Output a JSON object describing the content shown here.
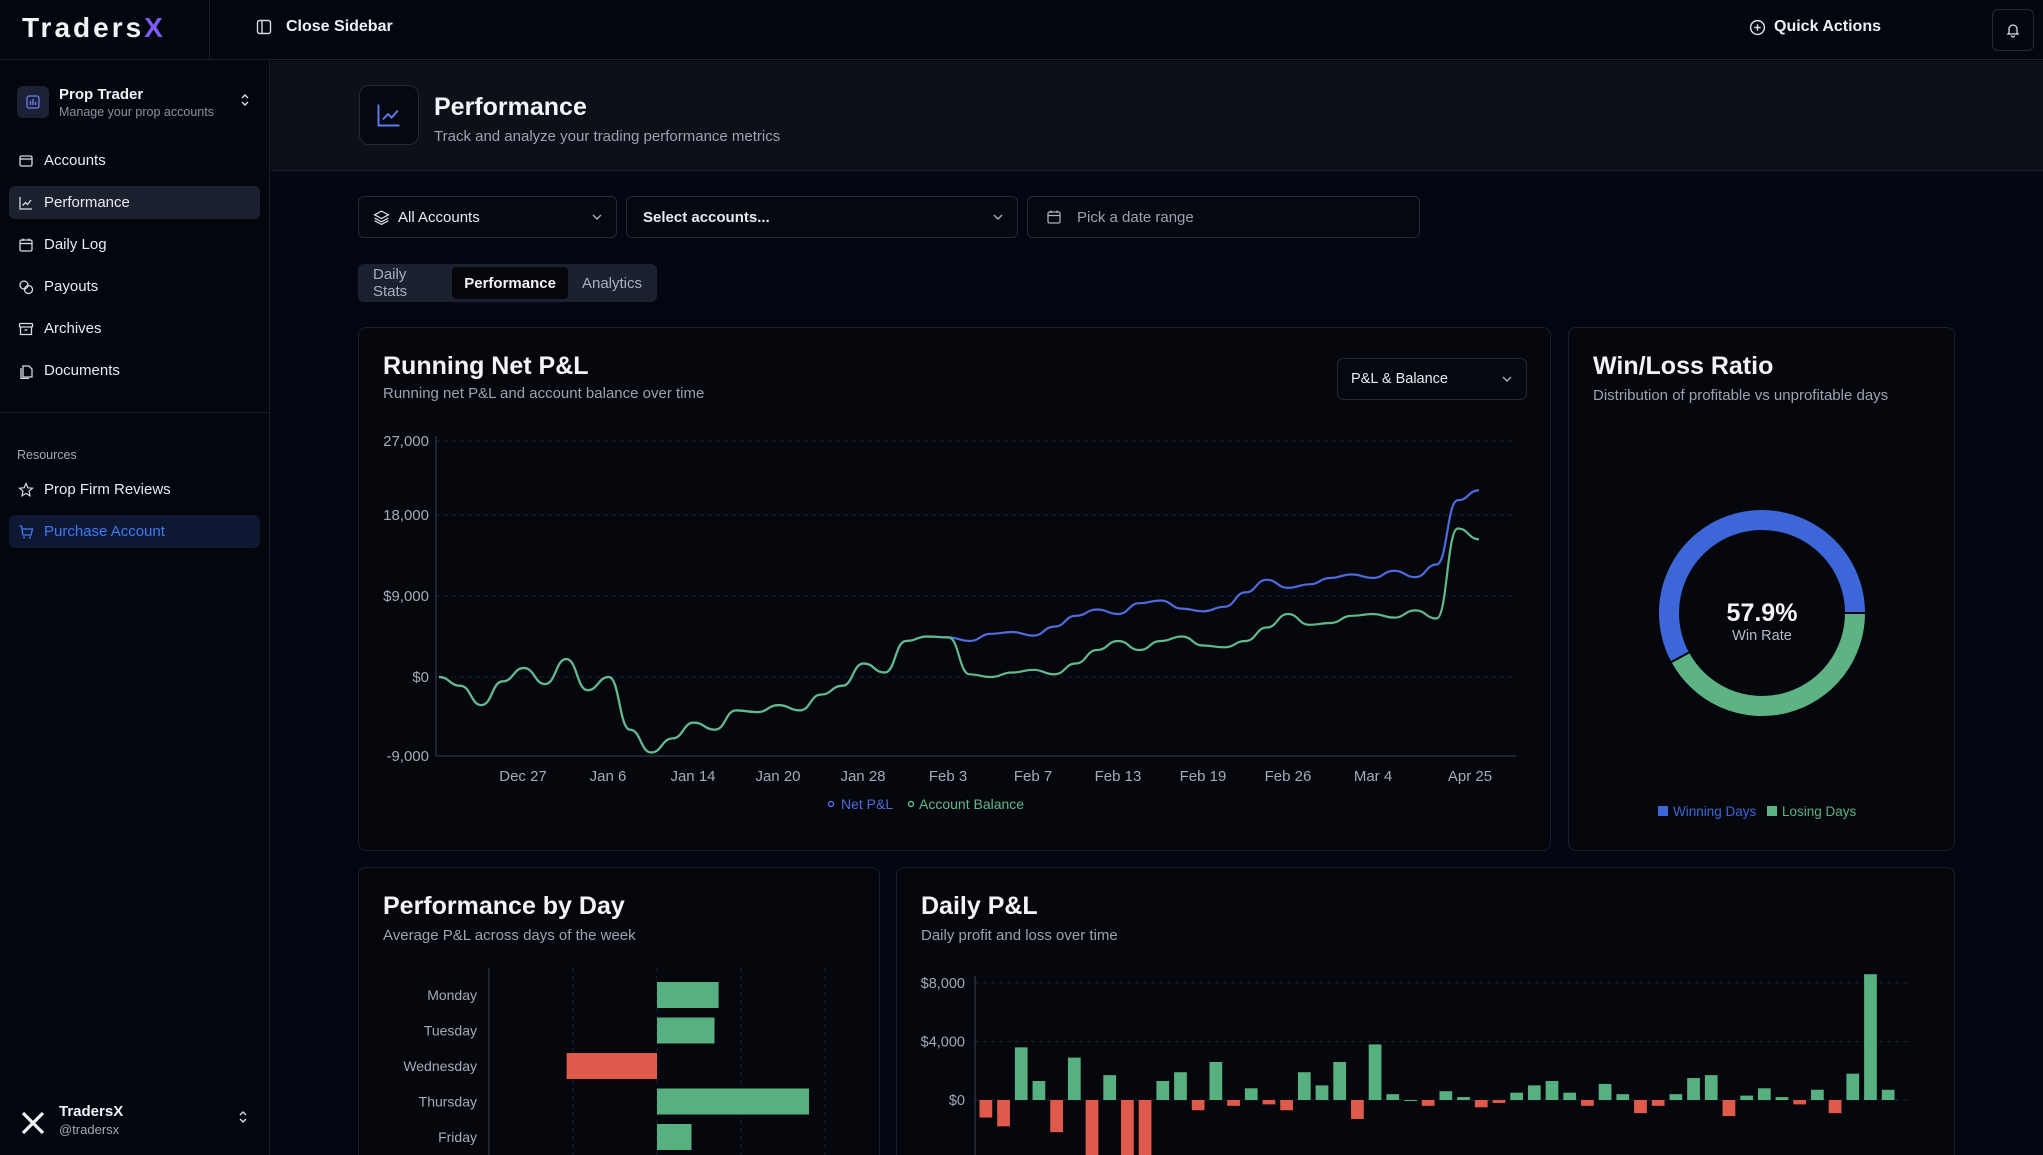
{
  "app": {
    "logo_text": "Traders",
    "logo_accent": "X"
  },
  "topbar": {
    "close_sidebar": "Close Sidebar",
    "quick_actions": "Quick Actions"
  },
  "sidebar": {
    "workspace": {
      "title": "Prop Trader",
      "subtitle": "Manage your prop accounts"
    },
    "items": [
      {
        "label": "Accounts",
        "icon": "wallet-icon"
      },
      {
        "label": "Performance",
        "icon": "line-chart-icon",
        "active": true
      },
      {
        "label": "Daily Log",
        "icon": "calendar-icon"
      },
      {
        "label": "Payouts",
        "icon": "coins-icon"
      },
      {
        "label": "Archives",
        "icon": "archive-icon"
      },
      {
        "label": "Documents",
        "icon": "documents-icon"
      }
    ],
    "resources_label": "Resources",
    "resources": [
      {
        "label": "Prop Firm Reviews",
        "icon": "star-icon"
      },
      {
        "label": "Purchase Account",
        "icon": "cart-icon",
        "active": true
      }
    ],
    "user": {
      "name": "TradersX",
      "handle": "@tradersx"
    }
  },
  "header": {
    "title": "Performance",
    "subtitle": "Track and analyze your trading performance metrics"
  },
  "filters": {
    "accounts": "All Accounts",
    "select_accounts": "Select accounts...",
    "date_placeholder": "Pick a date range"
  },
  "tabs": [
    {
      "label": "Daily Stats"
    },
    {
      "label": "Performance",
      "active": true
    },
    {
      "label": "Analytics"
    }
  ],
  "pnl_card": {
    "title": "Running Net P&L",
    "subtitle": "Running net P&L and account balance over time",
    "dropdown": "P&L & Balance",
    "legend": [
      "Net P&L",
      "Account Balance"
    ]
  },
  "winloss_card": {
    "title": "Win/Loss Ratio",
    "subtitle": "Distribution of profitable vs unprofitable days",
    "value": "57.9%",
    "value_label": "Win Rate",
    "legend": [
      "Winning Days",
      "Losing Days"
    ]
  },
  "byday_card": {
    "title": "Performance by Day",
    "subtitle": "Average P&L across days of the week"
  },
  "dailypnl_card": {
    "title": "Daily P&L",
    "subtitle": "Daily profit and loss over time"
  },
  "colors": {
    "net": "#4f6bde",
    "balance": "#62b98a",
    "win": "#3d67d8",
    "loss": "#5db384",
    "neg": "#e05a4c",
    "pos": "#57b07f"
  },
  "chart_data": [
    {
      "type": "line",
      "title": "Running Net P&L",
      "y_ticks": [
        "27,000",
        "18,000",
        "$9,000",
        "$0",
        "-9,000"
      ],
      "y_tick_values": [
        27000,
        18000,
        9000,
        0,
        -9000
      ],
      "x_ticks": [
        "Dec 27",
        "Jan 6",
        "Jan 14",
        "Jan 20",
        "Jan 28",
        "Feb 3",
        "Feb 7",
        "Feb 13",
        "Feb 19",
        "Feb 26",
        "Mar 4",
        "Apr 25"
      ],
      "ylim": [
        -9000,
        27000
      ],
      "grid": true,
      "legend_position": "bottom",
      "series": [
        {
          "name": "Net P&L",
          "values": [
            0,
            -1000,
            -3200,
            -500,
            1000,
            -800,
            2000,
            -1500,
            0,
            -6000,
            -8600,
            -7000,
            -5200,
            -6000,
            -3800,
            -4000,
            -3200,
            -3800,
            -2000,
            -1000,
            1500,
            500,
            4000,
            4500,
            4400,
            4000,
            4800,
            5000,
            4600,
            5600,
            6800,
            7500,
            7000,
            8200,
            8500,
            7600,
            7300,
            7800,
            9400,
            10800,
            9900,
            10300,
            11000,
            11400,
            11000,
            11800,
            11100,
            12500,
            19800,
            21000
          ]
        },
        {
          "name": "Account Balance",
          "values": [
            0,
            -1000,
            -3200,
            -500,
            1000,
            -800,
            2000,
            -1500,
            0,
            -6000,
            -8600,
            -7000,
            -5200,
            -6000,
            -3800,
            -4000,
            -3200,
            -3800,
            -2000,
            -1000,
            1500,
            500,
            4000,
            4500,
            4400,
            300,
            0,
            500,
            800,
            300,
            1500,
            3000,
            4000,
            3000,
            4000,
            4500,
            3500,
            3300,
            4000,
            5500,
            7000,
            5800,
            6000,
            6800,
            7000,
            6600,
            7400,
            6500,
            16500,
            15300
          ]
        }
      ]
    },
    {
      "type": "pie",
      "title": "Win/Loss Ratio",
      "categories": [
        "Winning Days",
        "Losing Days"
      ],
      "values": [
        57.9,
        42.1
      ],
      "center_label": "57.9%"
    },
    {
      "type": "bar",
      "title": "Performance by Day",
      "orientation": "horizontal",
      "categories": [
        "Monday",
        "Tuesday",
        "Wednesday",
        "Thursday",
        "Friday"
      ],
      "values": [
        750,
        700,
        -1100,
        1850,
        420
      ]
    },
    {
      "type": "bar",
      "title": "Daily P&L",
      "y_ticks": [
        "$8,000",
        "$4,000",
        "$0"
      ],
      "y_tick_values": [
        8000,
        4000,
        0
      ],
      "values": [
        -1200,
        -1800,
        3600,
        1300,
        -2200,
        2900,
        -3800,
        1700,
        -4500,
        -4300,
        1300,
        1900,
        -700,
        2600,
        -400,
        800,
        -300,
        -700,
        1900,
        1000,
        2600,
        -1300,
        3800,
        400,
        0,
        -400,
        600,
        200,
        -500,
        -200,
        500,
        1000,
        1300,
        500,
        -400,
        1100,
        400,
        -900,
        -400,
        400,
        1500,
        1700,
        -1100,
        300,
        800,
        200,
        -300,
        700,
        -900,
        1800,
        8600,
        700
      ]
    }
  ]
}
